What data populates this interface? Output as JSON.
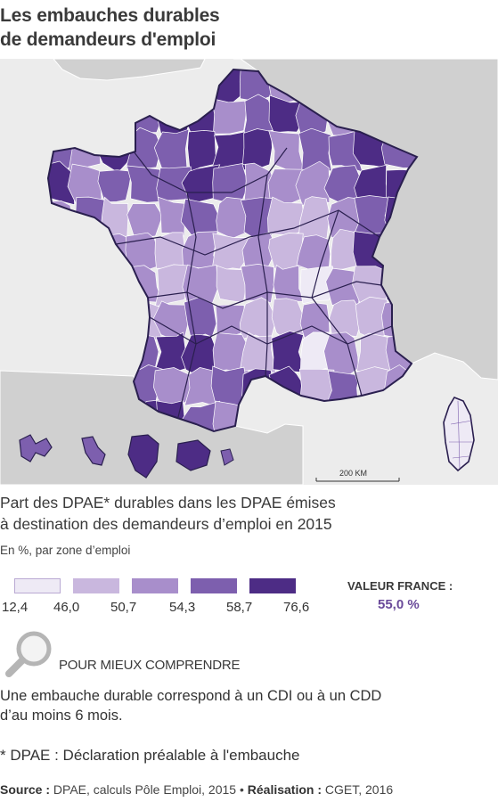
{
  "title": {
    "line1": "Les embauches durables",
    "line2": "de demandeurs d'emploi"
  },
  "map": {
    "scale_label": "200 KM",
    "sea_color": "#ececec",
    "land_color": "#d0d0d0",
    "border_color": "#2a1f4f"
  },
  "legend": {
    "title_line1": "Part des DPAE* durables dans les DPAE émises",
    "title_line2": "à destination des demandeurs d’emploi en 2015",
    "subtitle": "En %, par zone d’emploi",
    "classes": [
      {
        "color": "#eeeaf5"
      },
      {
        "color": "#c9b7de"
      },
      {
        "color": "#a88ecb"
      },
      {
        "color": "#7d5fae"
      },
      {
        "color": "#4d2c85"
      }
    ],
    "breaks": [
      "12,4",
      "46,0",
      "50,7",
      "54,3",
      "58,7",
      "76,6"
    ]
  },
  "national": {
    "label": "VALEUR FRANCE :",
    "value": "55,0 %"
  },
  "explain": {
    "heading": "POUR MIEUX COMPRENDRE",
    "line1": "Une embauche durable correspond à un CDI ou à un CDD",
    "line2": "d’au moins 6 mois.",
    "note": "* DPAE : Déclaration préalable à l'embauche"
  },
  "source": {
    "source_label": "Source :",
    "source_text": " DPAE, calculs Pôle Emploi, 2015 • ",
    "realisation_label": "Réalisation :",
    "realisation_text": " CGET, 2016"
  }
}
